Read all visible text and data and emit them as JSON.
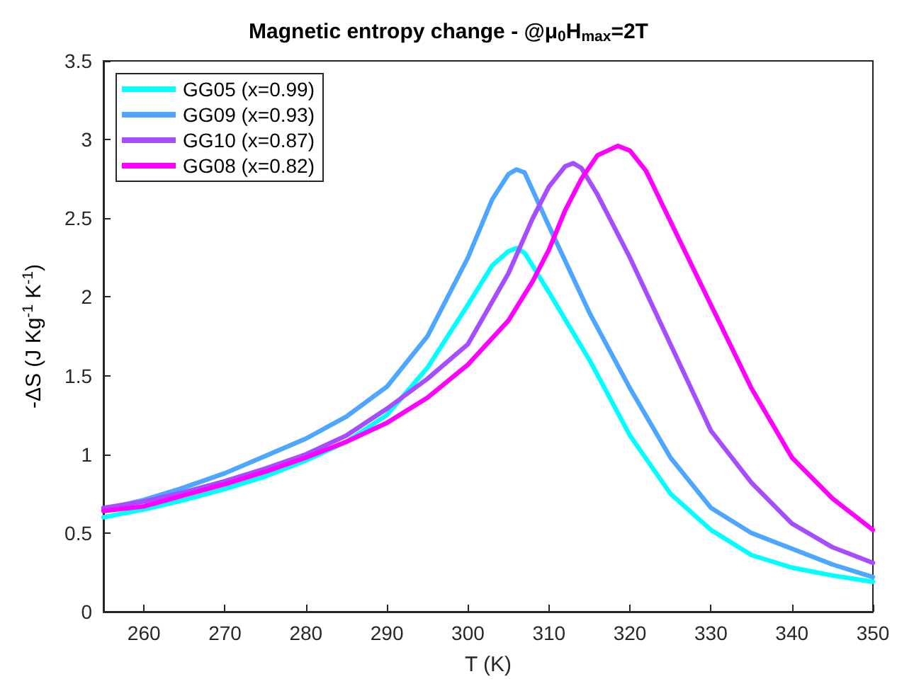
{
  "chart_data": {
    "type": "line",
    "title": "Magnetic entropy change - @μ$_{0}$H$_{max}$=2T",
    "xlabel": "T (K)",
    "ylabel": "-ΔS (J Kg$^{-1}$ K$^{-1}$)",
    "xlim": [
      255,
      350
    ],
    "xticks": [
      260,
      270,
      280,
      290,
      300,
      310,
      320,
      330,
      340,
      350
    ],
    "ylim": [
      0,
      3.5
    ],
    "yticks": [
      0,
      0.5,
      1,
      1.5,
      2,
      2.5,
      3,
      3.5
    ],
    "grid": false,
    "legend": "top left",
    "marker": "none",
    "line_style": "solid",
    "series": [
      {
        "name": "GG05 (x=0.99)",
        "color": "#00ffff",
        "x": [
          255,
          260,
          265,
          270,
          275,
          280,
          285,
          290,
          295,
          300,
          303,
          305,
          306,
          307,
          310,
          315,
          320,
          325,
          330,
          335,
          340,
          345,
          350
        ],
        "values": [
          0.6,
          0.65,
          0.71,
          0.78,
          0.86,
          0.96,
          1.08,
          1.25,
          1.55,
          1.95,
          2.2,
          2.29,
          2.31,
          2.28,
          2.03,
          1.6,
          1.12,
          0.75,
          0.52,
          0.36,
          0.28,
          0.23,
          0.19
        ]
      },
      {
        "name": "GG09 (x=0.93)",
        "color": "#4da6ff",
        "x": [
          255,
          260,
          265,
          270,
          275,
          280,
          285,
          290,
          295,
          300,
          303,
          305,
          306,
          307,
          310,
          315,
          320,
          325,
          330,
          335,
          340,
          345,
          350
        ],
        "values": [
          0.65,
          0.71,
          0.79,
          0.88,
          0.99,
          1.1,
          1.24,
          1.43,
          1.75,
          2.25,
          2.62,
          2.78,
          2.81,
          2.79,
          2.45,
          1.9,
          1.42,
          0.98,
          0.66,
          0.5,
          0.4,
          0.3,
          0.22
        ]
      },
      {
        "name": "GG10 (x=0.87)",
        "color": "#a64dff",
        "x": [
          255,
          260,
          265,
          270,
          275,
          280,
          285,
          290,
          295,
          300,
          305,
          308,
          310,
          312,
          313,
          314,
          316,
          320,
          325,
          330,
          335,
          340,
          345,
          350
        ],
        "values": [
          0.66,
          0.7,
          0.76,
          0.83,
          0.91,
          1.0,
          1.12,
          1.29,
          1.48,
          1.7,
          2.15,
          2.5,
          2.7,
          2.83,
          2.85,
          2.82,
          2.65,
          2.25,
          1.7,
          1.15,
          0.82,
          0.56,
          0.41,
          0.31
        ]
      },
      {
        "name": "GG08 (x=0.82)",
        "color": "#ff00ff",
        "x": [
          255,
          260,
          265,
          270,
          275,
          280,
          285,
          290,
          295,
          300,
          305,
          308,
          310,
          312,
          314,
          316,
          318.5,
          320,
          322,
          325,
          330,
          335,
          340,
          345,
          350
        ],
        "values": [
          0.64,
          0.67,
          0.74,
          0.81,
          0.89,
          0.98,
          1.08,
          1.2,
          1.36,
          1.57,
          1.85,
          2.1,
          2.3,
          2.55,
          2.75,
          2.9,
          2.96,
          2.93,
          2.8,
          2.48,
          1.95,
          1.42,
          0.98,
          0.72,
          0.52
        ]
      }
    ]
  }
}
